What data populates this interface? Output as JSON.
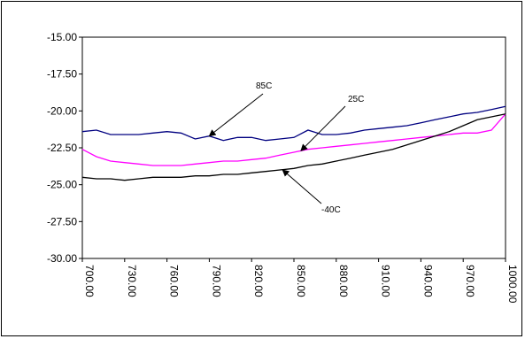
{
  "chart_data": {
    "type": "line",
    "title": "",
    "xlabel": "",
    "ylabel": "",
    "xlim": [
      700,
      1000
    ],
    "ylim": [
      -30,
      -15
    ],
    "x_ticks": [
      "700.00",
      "730.00",
      "760.00",
      "790.00",
      "820.00",
      "850.00",
      "880.00",
      "910.00",
      "940.00",
      "970.00",
      "1000.00"
    ],
    "y_ticks": [
      "-15.00",
      "-17.50",
      "-20.00",
      "-22.50",
      "-25.00",
      "-27.50",
      "-30.00"
    ],
    "grid": false,
    "legend": "none",
    "series": [
      {
        "name": "85C",
        "color": "#000080",
        "x": [
          700,
          710,
          720,
          730,
          740,
          750,
          760,
          770,
          780,
          790,
          800,
          810,
          820,
          830,
          840,
          850,
          860,
          870,
          880,
          890,
          900,
          910,
          920,
          930,
          940,
          950,
          960,
          970,
          980,
          990,
          1000
        ],
        "y": [
          -21.4,
          -21.3,
          -21.6,
          -21.6,
          -21.6,
          -21.5,
          -21.4,
          -21.5,
          -21.9,
          -21.7,
          -22.0,
          -21.8,
          -21.8,
          -22.0,
          -21.9,
          -21.8,
          -21.3,
          -21.6,
          -21.6,
          -21.5,
          -21.3,
          -21.2,
          -21.1,
          -21.0,
          -20.8,
          -20.6,
          -20.4,
          -20.2,
          -20.1,
          -19.9,
          -19.7
        ]
      },
      {
        "name": "25C",
        "color": "#ff00ff",
        "x": [
          700,
          710,
          720,
          730,
          740,
          750,
          760,
          770,
          780,
          790,
          800,
          810,
          820,
          830,
          840,
          850,
          860,
          870,
          880,
          890,
          900,
          910,
          920,
          930,
          940,
          950,
          960,
          970,
          980,
          990,
          1000
        ],
        "y": [
          -22.6,
          -23.1,
          -23.4,
          -23.5,
          -23.6,
          -23.7,
          -23.7,
          -23.7,
          -23.6,
          -23.5,
          -23.4,
          -23.4,
          -23.3,
          -23.2,
          -23.0,
          -22.8,
          -22.6,
          -22.5,
          -22.4,
          -22.3,
          -22.2,
          -22.1,
          -22.0,
          -21.9,
          -21.8,
          -21.7,
          -21.6,
          -21.5,
          -21.5,
          -21.3,
          -20.2
        ]
      },
      {
        "name": "-40C",
        "color": "#000000",
        "x": [
          700,
          710,
          720,
          730,
          740,
          750,
          760,
          770,
          780,
          790,
          800,
          810,
          820,
          830,
          840,
          850,
          860,
          870,
          880,
          890,
          900,
          910,
          920,
          930,
          940,
          950,
          960,
          970,
          980,
          990,
          1000
        ],
        "y": [
          -24.5,
          -24.6,
          -24.6,
          -24.7,
          -24.6,
          -24.5,
          -24.5,
          -24.5,
          -24.4,
          -24.4,
          -24.3,
          -24.3,
          -24.2,
          -24.1,
          -24.0,
          -23.9,
          -23.7,
          -23.6,
          -23.4,
          -23.2,
          -23.0,
          -22.8,
          -22.6,
          -22.3,
          -22.0,
          -21.7,
          -21.4,
          -21.0,
          -20.6,
          -20.4,
          -20.2
        ]
      }
    ],
    "annotations": [
      {
        "text": "85C",
        "target": [
          790,
          -21.7
        ]
      },
      {
        "text": "25C",
        "target": [
          855,
          -22.7
        ]
      },
      {
        "text": "-40C",
        "target": [
          842,
          -24.0
        ]
      }
    ]
  }
}
